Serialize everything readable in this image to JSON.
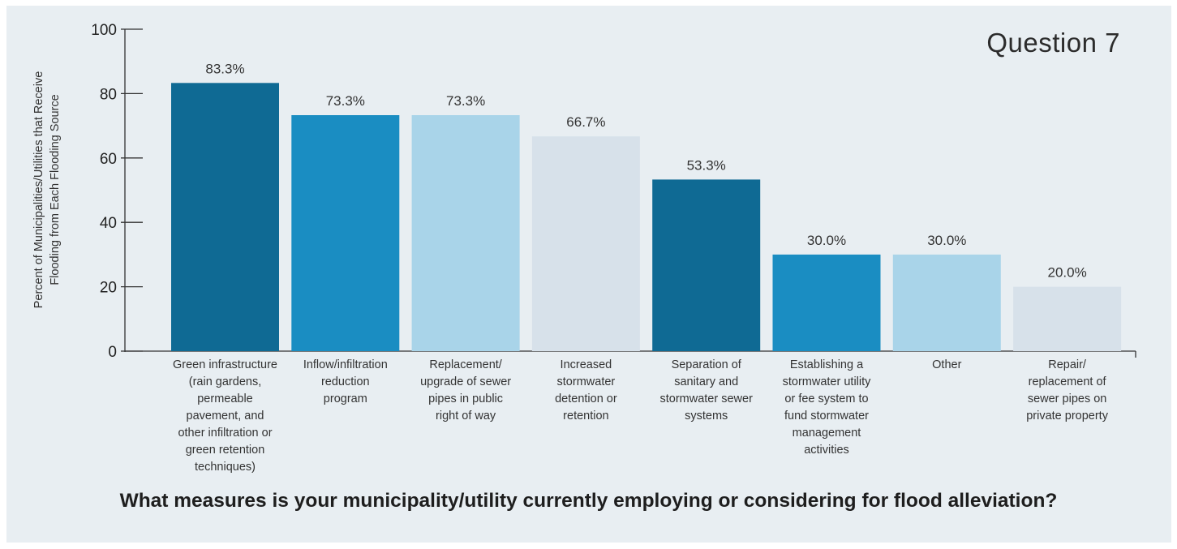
{
  "chart_data": {
    "type": "bar",
    "label": "Question 7",
    "title": "What measures is your municipality/utility currently employing or considering for flood alleviation?",
    "ylabel_lines": [
      "Percent of Municipalities/Utilities that Receive",
      "Flooding from Each Flooding Source"
    ],
    "ylim": [
      0,
      100
    ],
    "yticks": [
      0,
      20,
      40,
      60,
      80,
      100
    ],
    "grid": false,
    "categories": [
      [
        "Green infrastructure",
        "(rain gardens,",
        "permeable",
        "pavement, and",
        "other infiltration or",
        "green retention",
        "techniques)"
      ],
      [
        "Inflow/infiltration",
        "reduction",
        "program"
      ],
      [
        "Replacement/",
        "upgrade of sewer",
        "pipes in public",
        "right of way"
      ],
      [
        "Increased",
        "stormwater",
        "detention or",
        "retention"
      ],
      [
        "Separation of",
        "sanitary and",
        "stormwater sewer",
        "systems"
      ],
      [
        "Establishing a",
        "stormwater utility",
        "or fee system to",
        "fund stormwater",
        "management",
        "activities"
      ],
      [
        "Other"
      ],
      [
        "Repair/",
        "replacement of",
        "sewer pipes on",
        "private property"
      ]
    ],
    "values": [
      83.3,
      73.3,
      73.3,
      66.7,
      53.3,
      30.0,
      30.0,
      20.0
    ],
    "value_labels": [
      "83.3%",
      "73.3%",
      "73.3%",
      "66.7%",
      "53.3%",
      "30.0%",
      "30.0%",
      "20.0%"
    ],
    "colors": [
      "#0f6a94",
      "#1a8dc2",
      "#a9d4e9",
      "#d7e1ea",
      "#0f6a94",
      "#1a8dc2",
      "#a9d4e9",
      "#d7e1ea"
    ]
  }
}
